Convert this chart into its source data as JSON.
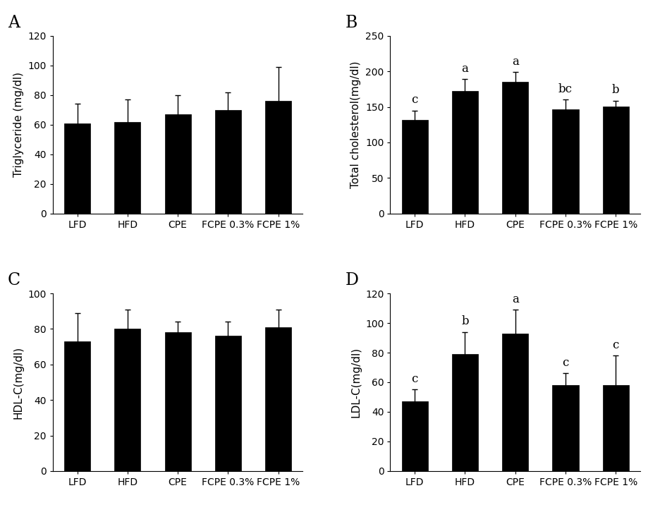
{
  "categories": [
    "LFD",
    "HFD",
    "CPE",
    "FCPE 0.3%",
    "FCPE 1%"
  ],
  "panels": [
    {
      "label": "A",
      "ylabel": "Triglyceride (mg/dl)",
      "ylim": [
        0,
        120
      ],
      "yticks": [
        0,
        20,
        40,
        60,
        80,
        100,
        120
      ],
      "values": [
        61,
        62,
        67,
        70,
        76
      ],
      "errors": [
        13,
        15,
        13,
        12,
        23
      ],
      "sig_labels": [
        "",
        "",
        "",
        "",
        ""
      ]
    },
    {
      "label": "B",
      "ylabel": "Total cholesterol(mg/dl)",
      "ylim": [
        0,
        250
      ],
      "yticks": [
        0,
        50,
        100,
        150,
        200,
        250
      ],
      "values": [
        132,
        172,
        185,
        147,
        151
      ],
      "errors": [
        13,
        17,
        14,
        13,
        8
      ],
      "sig_labels": [
        "c",
        "a",
        "a",
        "bc",
        "b"
      ]
    },
    {
      "label": "C",
      "ylabel": "HDL-C(mg/dl)",
      "ylim": [
        0,
        100
      ],
      "yticks": [
        0,
        20,
        40,
        60,
        80,
        100
      ],
      "values": [
        73,
        80,
        78,
        76,
        81
      ],
      "errors": [
        16,
        11,
        6,
        8,
        10
      ],
      "sig_labels": [
        "",
        "",
        "",
        "",
        ""
      ]
    },
    {
      "label": "D",
      "ylabel": "LDL-C(mg/dl)",
      "ylim": [
        0,
        120
      ],
      "yticks": [
        0,
        20,
        40,
        60,
        80,
        100,
        120
      ],
      "values": [
        47,
        79,
        93,
        58,
        58
      ],
      "errors": [
        8,
        15,
        16,
        8,
        20
      ],
      "sig_labels": [
        "c",
        "b",
        "a",
        "c",
        "c"
      ]
    }
  ],
  "bar_color": "#000000",
  "bar_width": 0.52,
  "background_color": "#ffffff",
  "tick_fontsize": 10,
  "ylabel_fontsize": 11,
  "sig_fontsize": 12,
  "panel_label_fontsize": 17,
  "xtick_fontsize": 10
}
